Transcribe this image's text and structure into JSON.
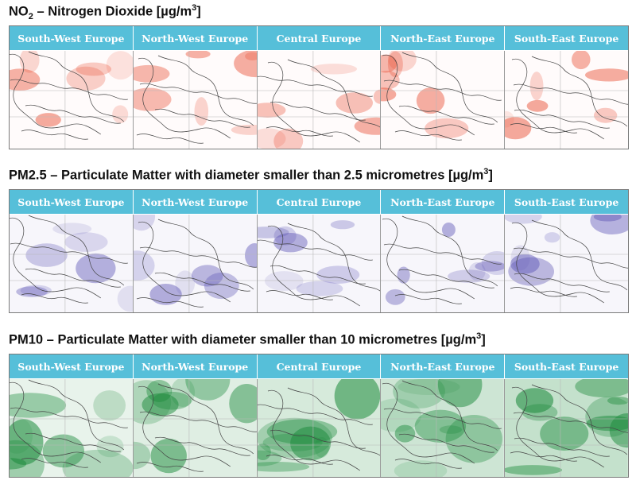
{
  "sections": [
    {
      "key": "no2",
      "title_main": "NO",
      "title_sub": "2",
      "title_rest": " – Nitrogen Dioxide [µg/m",
      "title_sup": "3",
      "title_end": "]",
      "color": "#e8462a",
      "regions": [
        "South-West Europe",
        "North-West Europe",
        "Central Europe",
        "North-East Europe",
        "South-East Europe"
      ]
    },
    {
      "key": "pm25",
      "title_main": "PM2.5 – Particulate Matter with diameter smaller than 2.5 micrometres [µg/m",
      "title_sup": "3",
      "title_end": "]",
      "color": "#5a52b4",
      "regions": [
        "South-West Europe",
        "North-West Europe",
        "Central Europe",
        "North-East Europe",
        "South-East Europe"
      ]
    },
    {
      "key": "pm10",
      "title_main": "PM10 – Particulate Matter with diameter smaller than 10 micrometres [µg/m",
      "title_sup": "3",
      "title_end": "]",
      "color": "#1a8a3a",
      "regions": [
        "South-West Europe",
        "North-West Europe",
        "Central Europe",
        "North-East Europe",
        "South-East Europe"
      ]
    }
  ]
}
